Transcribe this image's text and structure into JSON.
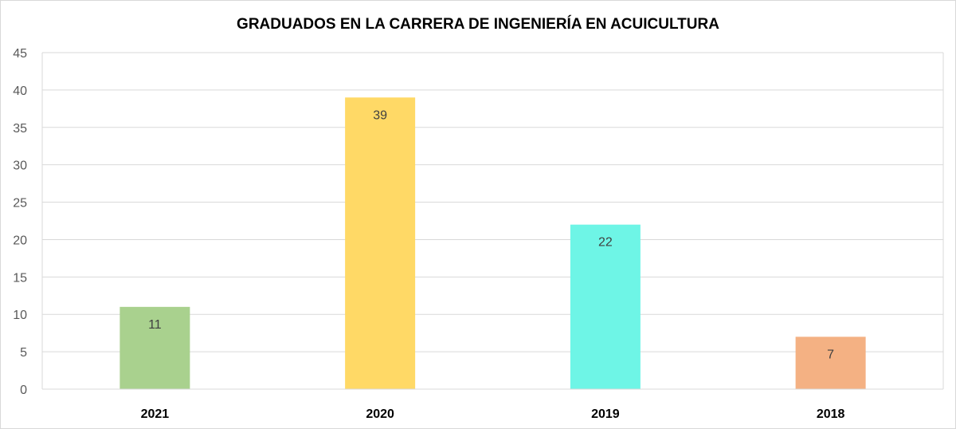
{
  "chart_data": {
    "type": "bar",
    "title": "GRADUADOS EN LA CARRERA DE INGENIERÍA EN ACUICULTURA",
    "xlabel": "",
    "ylabel": "",
    "categories": [
      "2021",
      "2020",
      "2019",
      "2018"
    ],
    "values": [
      11,
      39,
      22,
      7
    ],
    "bar_colors": [
      "#a9d18e",
      "#ffd966",
      "#6ef5e6",
      "#f4b183"
    ],
    "ylim": [
      0,
      45
    ],
    "y_ticks": [
      0,
      5,
      10,
      15,
      20,
      25,
      30,
      35,
      40,
      45
    ],
    "data_labels": true,
    "grid": true,
    "legend": "none"
  }
}
